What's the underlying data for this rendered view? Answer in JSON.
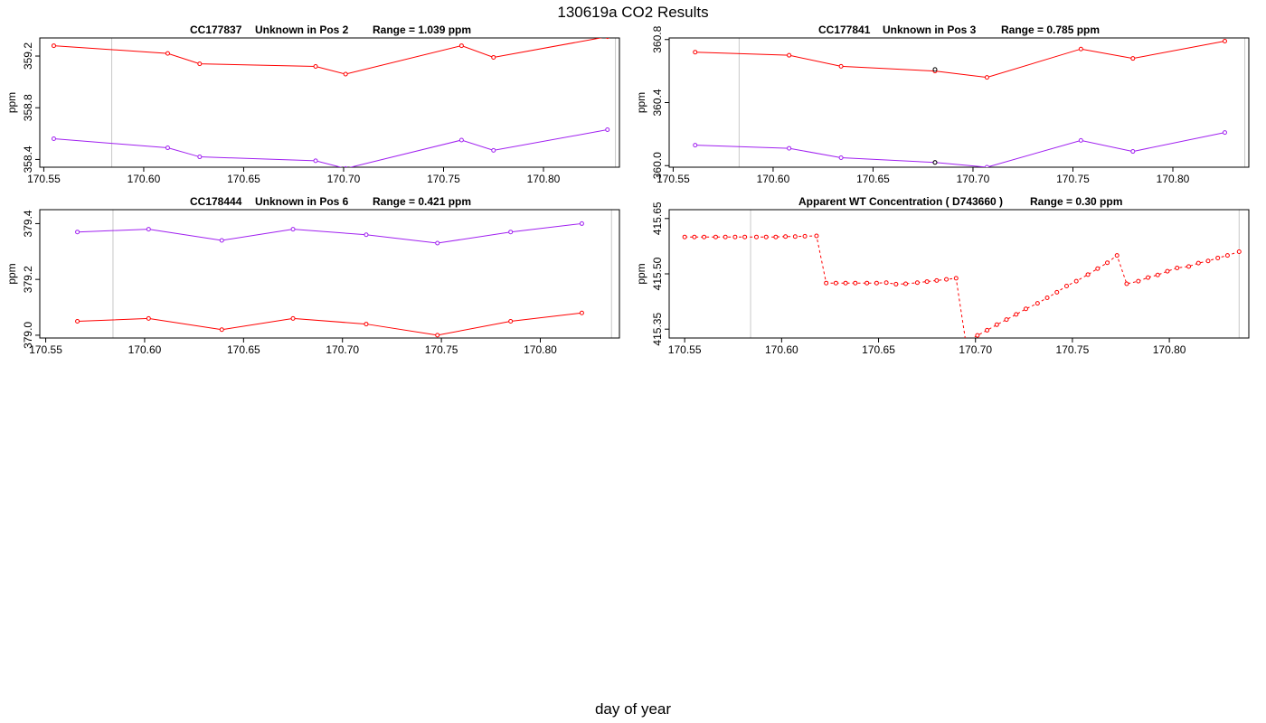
{
  "page": {
    "title": "130619a  CO2 Results",
    "xlabel": "day of year"
  },
  "chart_data": [
    {
      "type": "line",
      "id": "c1",
      "title_parts": [
        "CC177837",
        "Unknown in Pos 2",
        "Range =  1.039 ppm"
      ],
      "ylabel": "ppm",
      "xlim": [
        170.548,
        170.838
      ],
      "ylim": [
        358.34,
        359.34
      ],
      "xticks": [
        170.55,
        170.6,
        170.65,
        170.7,
        170.75,
        170.8
      ],
      "xtick_labels": [
        "170.55",
        "170.60",
        "170.65",
        "170.70",
        "170.75",
        "170.80"
      ],
      "yticks": [
        358.4,
        358.8,
        359.2
      ],
      "ytick_labels": [
        "358.4",
        "358.8",
        "359.2"
      ],
      "vlines": [
        170.584,
        170.836
      ],
      "series": [
        {
          "color": "#ff0000",
          "style": "solid",
          "x": [
            170.555,
            170.612,
            170.628,
            170.686,
            170.701,
            170.759,
            170.775,
            170.832
          ],
          "y": [
            359.28,
            359.22,
            359.14,
            359.12,
            359.06,
            359.28,
            359.19,
            359.35
          ]
        },
        {
          "color": "#a020f0",
          "style": "solid",
          "x": [
            170.555,
            170.612,
            170.628,
            170.686,
            170.701,
            170.759,
            170.775,
            170.832
          ],
          "y": [
            358.56,
            358.49,
            358.42,
            358.39,
            358.33,
            358.55,
            358.47,
            358.63
          ]
        }
      ]
    },
    {
      "type": "line",
      "id": "c2",
      "title_parts": [
        "CC177841",
        "Unknown in Pos 3",
        "Range =  0.785 ppm"
      ],
      "ylabel": "ppm",
      "xlim": [
        170.548,
        170.838
      ],
      "ylim": [
        359.99,
        360.81
      ],
      "xticks": [
        170.55,
        170.6,
        170.65,
        170.7,
        170.75,
        170.8
      ],
      "xtick_labels": [
        "170.55",
        "170.60",
        "170.65",
        "170.70",
        "170.75",
        "170.80"
      ],
      "yticks": [
        360.0,
        360.4,
        360.8
      ],
      "ytick_labels": [
        "360.0",
        "360.4",
        "360.8"
      ],
      "vlines": [
        170.583,
        170.836
      ],
      "series": [
        {
          "color": "#ff0000",
          "style": "solid",
          "x": [
            170.561,
            170.608,
            170.634,
            170.681,
            170.707,
            170.754,
            170.78,
            170.826
          ],
          "y": [
            360.72,
            360.7,
            360.63,
            360.6,
            360.56,
            360.74,
            360.68,
            360.79
          ]
        },
        {
          "color": "#a020f0",
          "style": "solid",
          "x": [
            170.561,
            170.608,
            170.634,
            170.681,
            170.707,
            170.754,
            170.78,
            170.826
          ],
          "y": [
            360.13,
            360.11,
            360.05,
            360.02,
            359.99,
            360.16,
            360.09,
            360.21
          ]
        }
      ],
      "extra_points": {
        "color": "#000000",
        "x": [
          170.681,
          170.681
        ],
        "y": [
          360.61,
          360.02
        ]
      }
    },
    {
      "type": "line",
      "id": "c3",
      "title_parts": [
        "CC178444",
        "Unknown in Pos 6",
        "Range =  0.421 ppm"
      ],
      "ylabel": "ppm",
      "xlim": [
        170.547,
        170.84
      ],
      "ylim": [
        378.99,
        379.45
      ],
      "xticks": [
        170.55,
        170.6,
        170.65,
        170.7,
        170.75,
        170.8
      ],
      "xtick_labels": [
        "170.55",
        "170.60",
        "170.65",
        "170.70",
        "170.75",
        "170.80"
      ],
      "yticks": [
        379.0,
        379.2,
        379.4
      ],
      "ytick_labels": [
        "379.0",
        "379.2",
        "379.4"
      ],
      "vlines": [
        170.584,
        170.836
      ],
      "series": [
        {
          "color": "#a020f0",
          "style": "solid",
          "x": [
            170.566,
            170.602,
            170.639,
            170.675,
            170.712,
            170.748,
            170.785,
            170.821
          ],
          "y": [
            379.37,
            379.38,
            379.34,
            379.38,
            379.36,
            379.33,
            379.37,
            379.4
          ]
        },
        {
          "color": "#ff0000",
          "style": "solid",
          "x": [
            170.566,
            170.602,
            170.639,
            170.675,
            170.712,
            170.748,
            170.785,
            170.821
          ],
          "y": [
            379.05,
            379.06,
            379.02,
            379.06,
            379.04,
            379.0,
            379.05,
            379.08
          ]
        }
      ]
    },
    {
      "type": "line",
      "id": "c4",
      "title_parts": [
        "Apparent WT Concentration ( D743660 )",
        "Range = 0.30 ppm"
      ],
      "ylabel": "ppm",
      "xlim": [
        170.542,
        170.841
      ],
      "ylim": [
        415.326,
        415.674
      ],
      "xticks": [
        170.55,
        170.6,
        170.65,
        170.7,
        170.75,
        170.8
      ],
      "xtick_labels": [
        "170.55",
        "170.60",
        "170.65",
        "170.70",
        "170.75",
        "170.80"
      ],
      "yticks": [
        415.35,
        415.5,
        415.65
      ],
      "ytick_labels": [
        "415.35",
        "415.50",
        "415.65"
      ],
      "vlines": [
        170.584,
        170.836
      ],
      "series": [
        {
          "color": "#ff0000",
          "style": "dashed",
          "x": [
            170.55,
            170.555,
            170.56,
            170.566,
            170.571,
            170.576,
            170.581,
            170.587,
            170.592,
            170.597,
            170.602,
            170.607,
            170.612,
            170.618,
            170.623,
            170.628,
            170.633,
            170.638,
            170.644,
            170.649,
            170.654,
            170.659,
            170.664,
            170.67,
            170.675,
            170.68,
            170.685,
            170.69,
            170.695,
            170.701,
            170.706,
            170.711,
            170.716,
            170.721,
            170.726,
            170.732,
            170.737,
            170.742,
            170.747,
            170.752,
            170.758,
            170.763,
            170.768,
            170.773,
            170.778,
            170.784,
            170.789,
            170.794,
            170.799,
            170.804,
            170.81,
            170.815,
            170.82,
            170.825,
            170.83,
            170.836
          ],
          "y": [
            415.6,
            415.6,
            415.6,
            415.6,
            415.6,
            415.6,
            415.6,
            415.6,
            415.6,
            415.6,
            415.601,
            415.601,
            415.602,
            415.603,
            415.475,
            415.475,
            415.475,
            415.475,
            415.475,
            415.475,
            415.476,
            415.472,
            415.473,
            415.476,
            415.479,
            415.482,
            415.485,
            415.488,
            415.315,
            415.333,
            415.347,
            415.362,
            415.376,
            415.39,
            415.405,
            415.42,
            415.435,
            415.45,
            415.467,
            415.48,
            415.498,
            415.514,
            415.53,
            415.55,
            415.473,
            415.48,
            415.49,
            415.497,
            415.507,
            415.516,
            415.52,
            415.529,
            415.535,
            415.543,
            415.55,
            415.56
          ]
        }
      ]
    }
  ]
}
